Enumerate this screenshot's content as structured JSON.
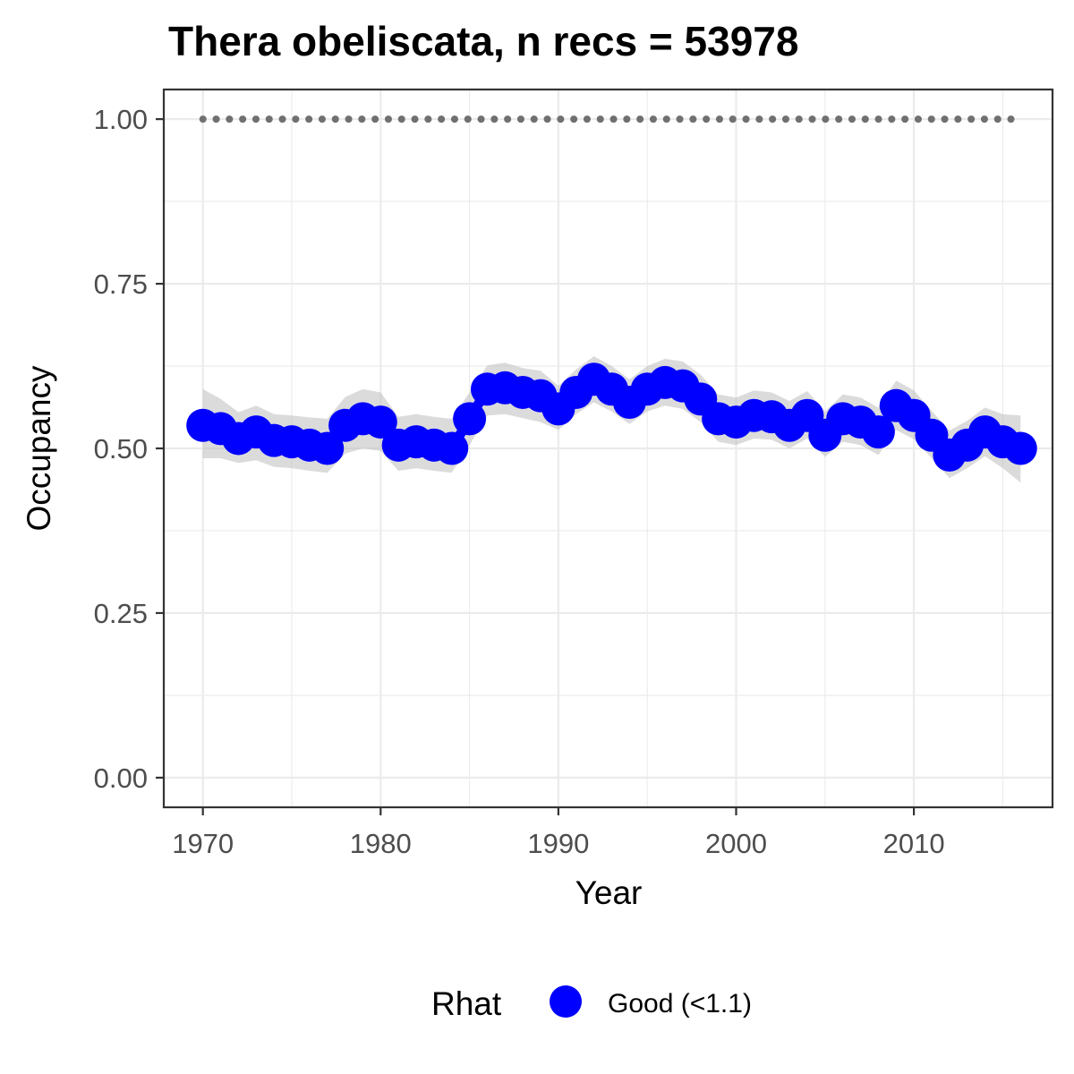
{
  "chart_data": {
    "type": "line",
    "title": "Thera obeliscata, n recs = 53978",
    "xlabel": "Year",
    "ylabel": "Occupancy",
    "xlim": [
      1967.8,
      2017.8
    ],
    "ylim": [
      -0.045,
      1.045
    ],
    "x_ticks": [
      1970,
      1980,
      1990,
      2000,
      2010
    ],
    "y_ticks": [
      0.0,
      0.25,
      0.5,
      0.75,
      1.0
    ],
    "x_tick_labels": [
      "1970",
      "1980",
      "1990",
      "2000",
      "2010"
    ],
    "y_tick_labels": [
      "0.00",
      "0.25",
      "0.50",
      "0.75",
      "1.00"
    ],
    "grid": true,
    "legend": {
      "position": "bottom",
      "title": "Rhat",
      "entries": [
        {
          "label": "Good (<1.1)",
          "color": "#0000ff"
        }
      ]
    },
    "colors": {
      "series": "#0000ff",
      "ribbon": "#bebebe",
      "reference_line": "#707070",
      "panel_border": "#333333",
      "grid": "#ebebeb"
    },
    "x": [
      1970,
      1971,
      1972,
      1973,
      1974,
      1975,
      1976,
      1977,
      1978,
      1979,
      1980,
      1981,
      1982,
      1983,
      1984,
      1985,
      1986,
      1987,
      1988,
      1989,
      1990,
      1991,
      1992,
      1993,
      1994,
      1995,
      1996,
      1997,
      1998,
      1999,
      2000,
      2001,
      2002,
      2003,
      2004,
      2005,
      2006,
      2007,
      2008,
      2009,
      2010,
      2011,
      2012,
      2013,
      2014,
      2015,
      2016
    ],
    "series": [
      {
        "values": [
          0.535,
          0.53,
          0.515,
          0.525,
          0.512,
          0.51,
          0.505,
          0.5,
          0.535,
          0.545,
          0.54,
          0.505,
          0.51,
          0.505,
          0.5,
          0.545,
          0.59,
          0.592,
          0.585,
          0.58,
          0.56,
          0.585,
          0.605,
          0.59,
          0.57,
          0.59,
          0.6,
          0.595,
          0.575,
          0.545,
          0.54,
          0.55,
          0.548,
          0.535,
          0.55,
          0.52,
          0.545,
          0.54,
          0.525,
          0.565,
          0.55,
          0.52,
          0.49,
          0.505,
          0.525,
          0.51,
          0.5
        ],
        "lower": [
          0.485,
          0.485,
          0.478,
          0.482,
          0.472,
          0.47,
          0.466,
          0.463,
          0.492,
          0.5,
          0.496,
          0.466,
          0.47,
          0.466,
          0.463,
          0.505,
          0.55,
          0.552,
          0.546,
          0.54,
          0.528,
          0.552,
          0.57,
          0.556,
          0.537,
          0.556,
          0.565,
          0.56,
          0.54,
          0.51,
          0.505,
          0.515,
          0.513,
          0.5,
          0.515,
          0.487,
          0.51,
          0.505,
          0.49,
          0.528,
          0.514,
          0.485,
          0.455,
          0.47,
          0.488,
          0.47,
          0.448
        ],
        "upper": [
          0.59,
          0.575,
          0.555,
          0.565,
          0.552,
          0.55,
          0.547,
          0.545,
          0.578,
          0.59,
          0.585,
          0.548,
          0.552,
          0.548,
          0.545,
          0.585,
          0.626,
          0.63,
          0.622,
          0.618,
          0.595,
          0.62,
          0.64,
          0.625,
          0.605,
          0.625,
          0.636,
          0.632,
          0.612,
          0.582,
          0.577,
          0.588,
          0.585,
          0.572,
          0.587,
          0.556,
          0.582,
          0.577,
          0.562,
          0.603,
          0.588,
          0.557,
          0.527,
          0.542,
          0.562,
          0.552,
          0.55
        ]
      }
    ],
    "reference_line": {
      "y": 1.0,
      "style": "dotted"
    }
  }
}
